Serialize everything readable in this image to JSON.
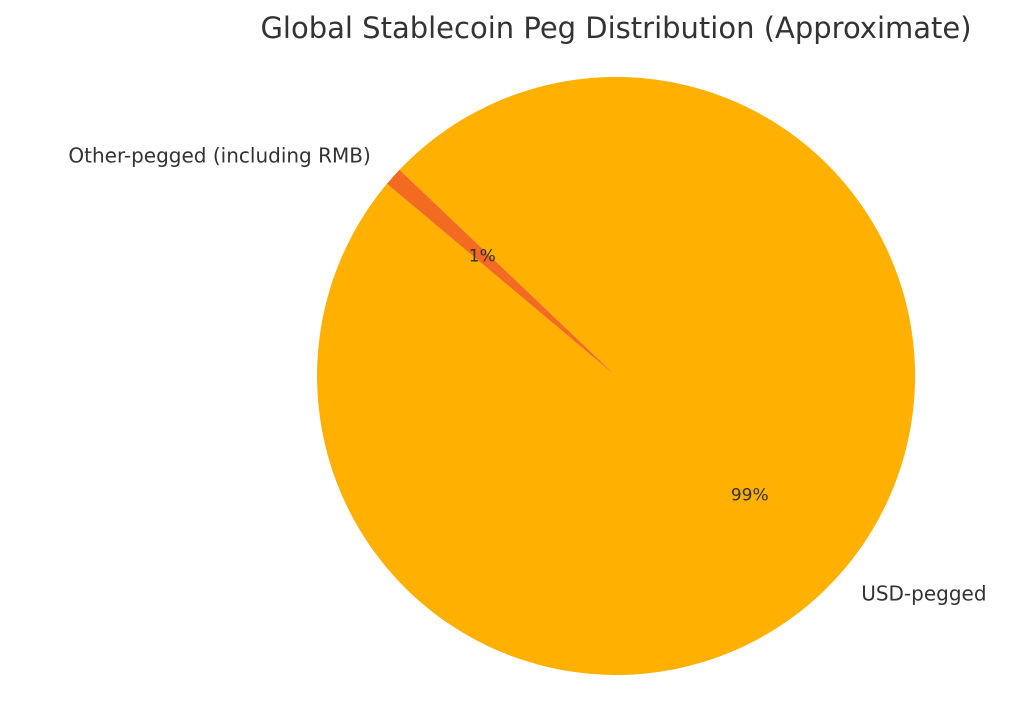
{
  "chart_data": {
    "type": "pie",
    "title": "Global Stablecoin Peg Distribution (Approximate)",
    "slices": [
      {
        "label": "USD-pegged",
        "value": 99,
        "pct_label": "99%",
        "color": "#FFB000"
      },
      {
        "label": "Other-pegged (including RMB)",
        "value": 1,
        "pct_label": "1%",
        "color": "#F26B21"
      }
    ],
    "start_angle_deg": 140,
    "direction": "counterclockwise"
  }
}
